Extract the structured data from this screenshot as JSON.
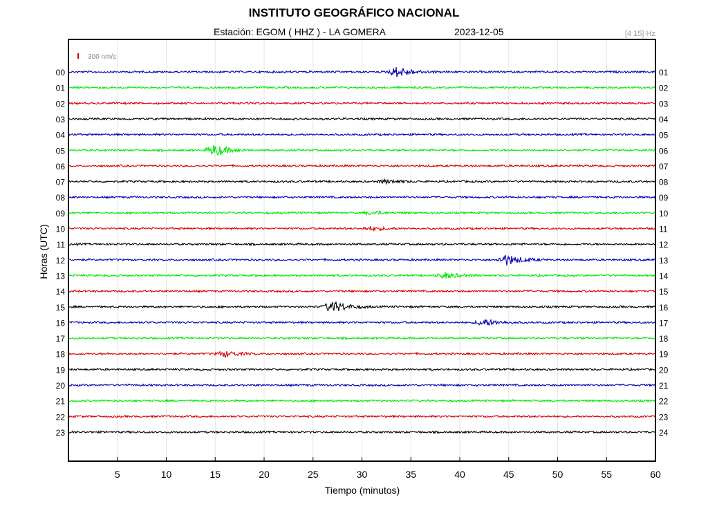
{
  "header": {
    "title": "INSTITUTO GEOGRÁFICO NACIONAL",
    "station": "Estación:  EGOM ( HHZ ) - LA GOMERA",
    "date": "2023-12-05",
    "filter": "[4 15] Hz"
  },
  "chart_data": {
    "type": "line",
    "title": "INSTITUTO GEOGRÁFICO NACIONAL",
    "xlabel": "Tiempo (minutos)",
    "ylabel": "Horas (UTC)",
    "xlim": [
      0,
      60
    ],
    "x_ticks": [
      "5",
      "10",
      "15",
      "20",
      "25",
      "30",
      "35",
      "40",
      "45",
      "50",
      "55",
      "60"
    ],
    "y_ticks_left": [
      "00",
      "01",
      "02",
      "03",
      "04",
      "05",
      "06",
      "07",
      "08",
      "09",
      "10",
      "11",
      "12",
      "13",
      "14",
      "15",
      "16",
      "17",
      "18",
      "19",
      "20",
      "21",
      "22",
      "23"
    ],
    "y_ticks_right": [
      "01",
      "02",
      "03",
      "04",
      "05",
      "06",
      "07",
      "08",
      "09",
      "10",
      "11",
      "12",
      "13",
      "14",
      "15",
      "16",
      "17",
      "18",
      "19",
      "20",
      "21",
      "22",
      "23",
      "24"
    ],
    "scale_label": "300 nm/s",
    "grid": "vertical",
    "trace_colors": [
      "#0000b4",
      "#00e600",
      "#d40000",
      "#000000"
    ],
    "events": [
      {
        "hour": "00",
        "minute": 33.6,
        "amplitude": 0.9
      },
      {
        "hour": "05",
        "minute": 15,
        "amplitude": 1.0
      },
      {
        "hour": "07",
        "minute": 32.5,
        "amplitude": 0.3
      },
      {
        "hour": "09",
        "minute": 31,
        "amplitude": 0.3
      },
      {
        "hour": "10",
        "minute": 31,
        "amplitude": 0.3
      },
      {
        "hour": "12",
        "minute": 44.8,
        "amplitude": 0.9
      },
      {
        "hour": "13",
        "minute": 38.5,
        "amplitude": 0.5
      },
      {
        "hour": "15",
        "minute": 27,
        "amplitude": 1.0
      },
      {
        "hour": "16",
        "minute": 42.5,
        "amplitude": 0.6
      },
      {
        "hour": "18",
        "minute": 16,
        "amplitude": 0.5
      }
    ]
  }
}
